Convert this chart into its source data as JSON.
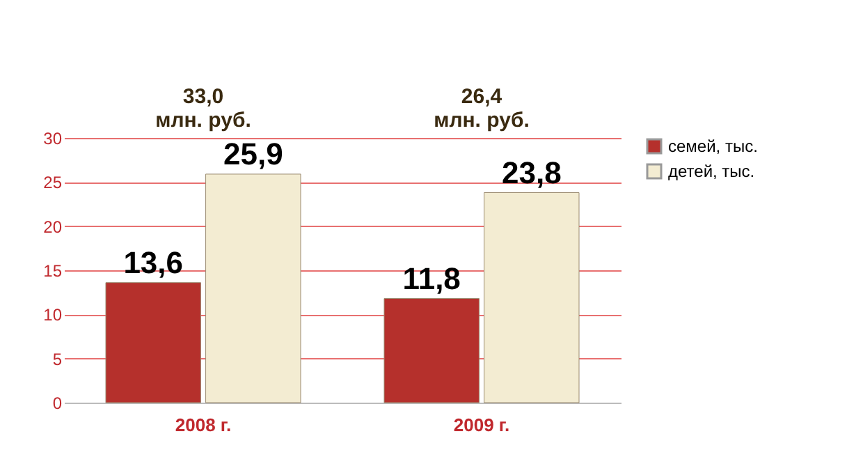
{
  "chart_data": {
    "type": "bar",
    "categories": [
      "2008 г.",
      "2009 г."
    ],
    "series": [
      {
        "name": "семей, тыс.",
        "color": "#b5302c",
        "values": [
          13.6,
          11.8
        ],
        "value_labels": [
          "13,6",
          "11,8"
        ]
      },
      {
        "name": "детей, тыс.",
        "color": "#f3ecd2",
        "values": [
          25.9,
          23.8
        ],
        "value_labels": [
          "25,9",
          "23,8"
        ]
      }
    ],
    "ylim": [
      0,
      30
    ],
    "yticks": [
      0,
      5,
      10,
      15,
      20,
      25,
      30
    ],
    "grid": "y",
    "legend": "right",
    "annotations": [
      "33,0\nмлн. руб.",
      "26,4\nмлн. руб."
    ]
  }
}
